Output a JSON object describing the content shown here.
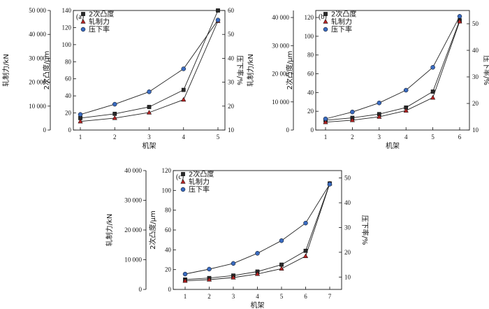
{
  "chart_data": [
    {
      "type": "line",
      "panel_label": "(a)",
      "xlabel": "机架",
      "x": [
        1,
        2,
        3,
        4,
        5
      ],
      "ylabel_outer": "轧制力/kN",
      "ylim_outer": [
        0,
        50000
      ],
      "yticks_outer": [
        "0",
        "10 000",
        "20 000",
        "30 000",
        "40 000",
        "50 000"
      ],
      "ylabel_inner": "2次凸度/μm",
      "ylim_inner": [
        0,
        140
      ],
      "yticks_inner": [
        "0",
        "20",
        "40",
        "60",
        "80",
        "100",
        "120",
        "140"
      ],
      "ylabel_right": "压下率/%",
      "ylim_right": [
        10,
        60
      ],
      "yticks_right": [
        "10",
        "20",
        "30",
        "40",
        "50",
        "60"
      ],
      "series": [
        {
          "name": "2次凸度",
          "marker": "square",
          "values": [
            14,
            19,
            27,
            47,
            140
          ]
        },
        {
          "name": "轧制力",
          "marker": "triangle",
          "values": [
            3600,
            5000,
            7300,
            12700,
            45600
          ]
        },
        {
          "name": "压下率",
          "marker": "circle",
          "values": [
            16.5,
            20.8,
            26,
            35.6,
            56
          ]
        }
      ]
    },
    {
      "type": "line",
      "panel_label": "(b)",
      "xlabel": "机架",
      "x": [
        1,
        2,
        3,
        4,
        5,
        6
      ],
      "ylabel_outer": "轧制力/kN",
      "ylim_outer": [
        0,
        42500
      ],
      "yticks_outer": [
        "0",
        "10 000",
        "20 000",
        "30 000",
        "40 000"
      ],
      "ylabel_inner": "2次凸度/μm",
      "ylim_inner": [
        0,
        127.5
      ],
      "yticks_inner": [
        "0",
        "20",
        "40",
        "60",
        "80",
        "100",
        "120"
      ],
      "ylabel_right": "压下率/%",
      "ylim_right": [
        10,
        55
      ],
      "yticks_right": [
        "10",
        "20",
        "30",
        "40",
        "50"
      ],
      "series": [
        {
          "name": "2次凸度",
          "marker": "square",
          "values": [
            10.5,
            13,
            17,
            24,
            41,
            117
          ]
        },
        {
          "name": "轧制力",
          "marker": "triangle",
          "values": [
            2800,
            3500,
            4700,
            6900,
            11500,
            38600
          ]
        },
        {
          "name": "压下率",
          "marker": "circle",
          "values": [
            14.2,
            16.8,
            20.2,
            25,
            33.6,
            52.8
          ]
        }
      ]
    },
    {
      "type": "line",
      "panel_label": "(c)",
      "xlabel": "机架",
      "x": [
        1,
        2,
        3,
        4,
        5,
        6,
        7
      ],
      "ylabel_outer": "轧制力/kN",
      "ylim_outer": [
        0,
        40000
      ],
      "yticks_outer": [
        "0",
        "10 000",
        "20 000",
        "30 000",
        "40 000"
      ],
      "ylabel_inner": "2次凸度/μm",
      "ylim_inner": [
        0,
        120
      ],
      "yticks_inner": [
        "0",
        "20",
        "40",
        "60",
        "80",
        "100",
        "120"
      ],
      "ylabel_right": "压下率/%",
      "ylim_right": [
        5,
        53
      ],
      "yticks_right": [
        "10",
        "20",
        "30",
        "40",
        "50"
      ],
      "series": [
        {
          "name": "2次凸度",
          "marker": "square",
          "values": [
            10,
            11.5,
            14,
            18,
            25,
            39,
            107
          ]
        },
        {
          "name": "轧制力",
          "marker": "triangle",
          "values": [
            2900,
            3300,
            4000,
            5200,
            7000,
            11200,
            35600
          ]
        },
        {
          "name": "压下率",
          "marker": "circle",
          "values": [
            11.2,
            13.2,
            15.5,
            19.6,
            24.7,
            31.8,
            47.5
          ]
        }
      ]
    }
  ]
}
